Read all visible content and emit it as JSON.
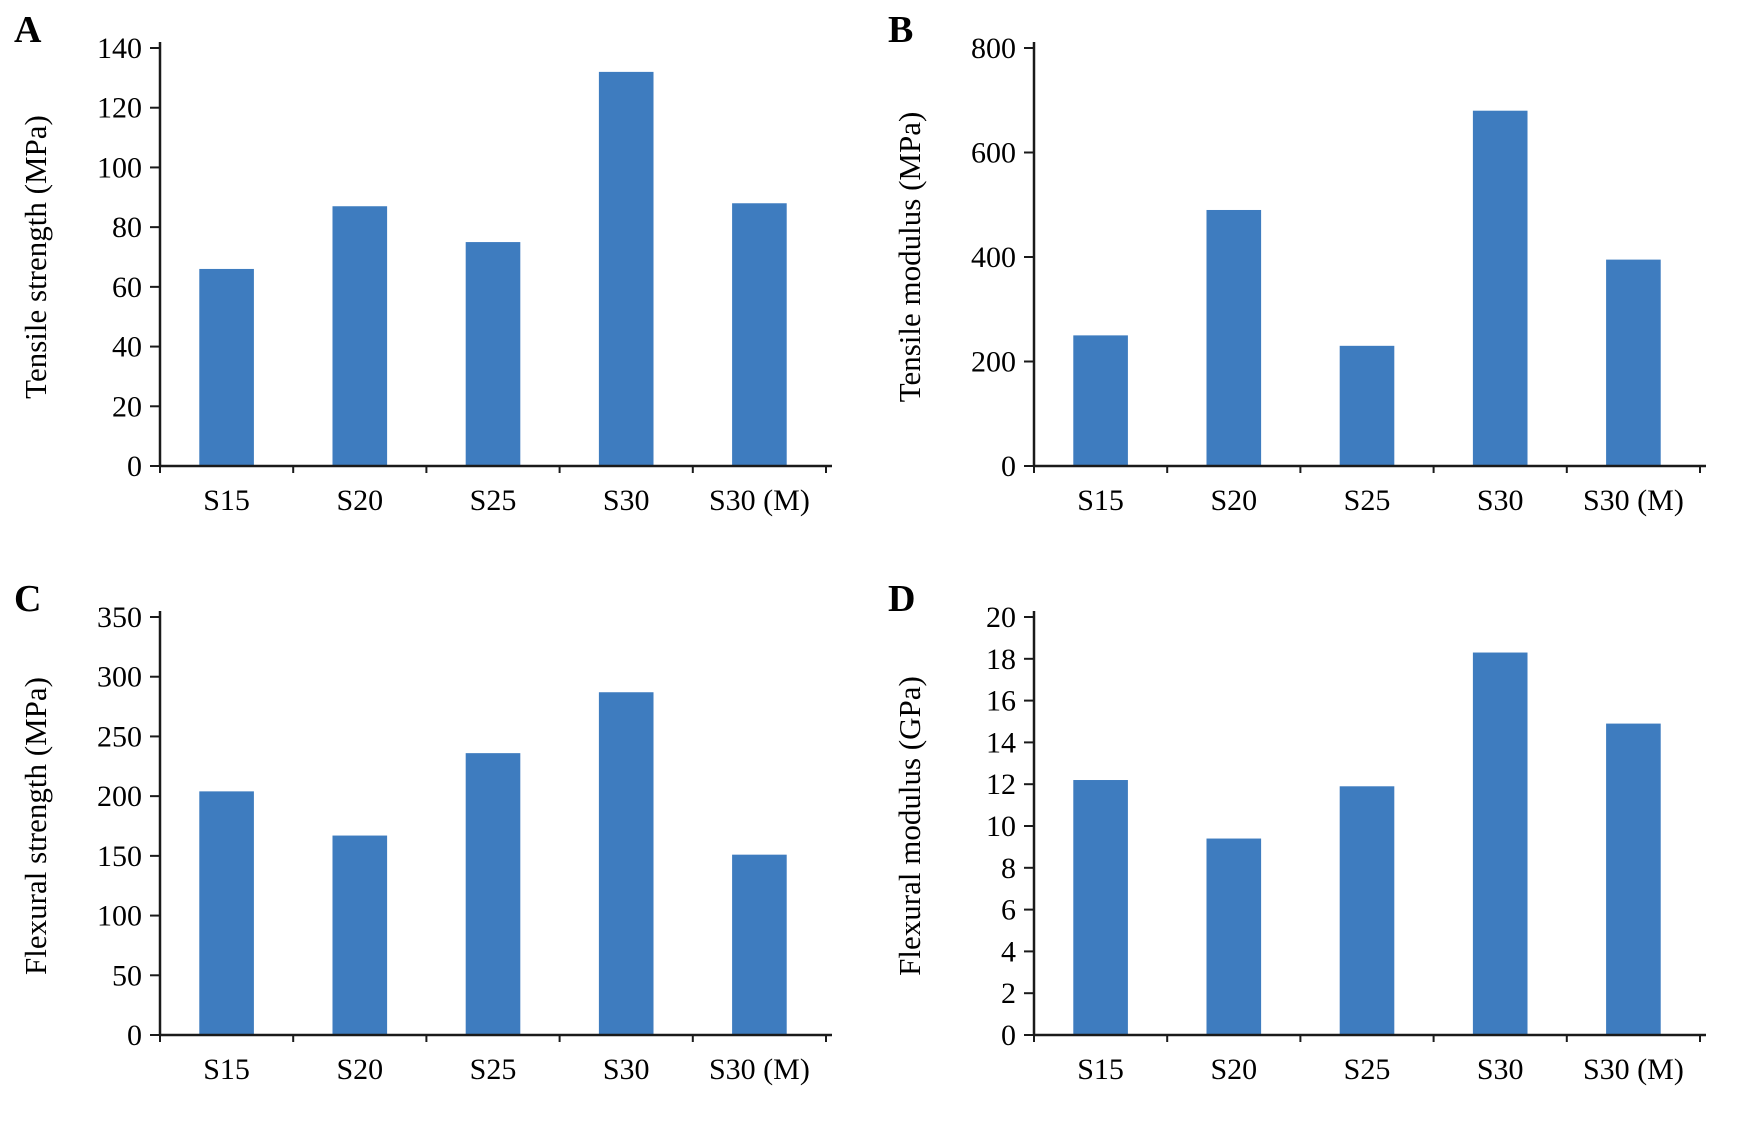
{
  "page": {
    "background": "#ffffff"
  },
  "style": {
    "bar_color": "#3E7CBF",
    "axis_color": "#1a1a1a",
    "text_color": "#000000"
  },
  "chart_data": [
    {
      "type": "bar",
      "panel_label": "A",
      "title": "",
      "xlabel": "",
      "ylabel": "Tensile strength (MPa)",
      "ylim": [
        0,
        140
      ],
      "ytick_step": 20,
      "grid": false,
      "legend": "none",
      "categories": [
        "S15",
        "S20",
        "S25",
        "S30",
        "S30 (M)"
      ],
      "values": [
        66,
        87,
        75,
        132,
        88
      ]
    },
    {
      "type": "bar",
      "panel_label": "B",
      "title": "",
      "xlabel": "",
      "ylabel": "Tensile modulus (MPa)",
      "ylim": [
        0,
        800
      ],
      "ytick_step": 200,
      "grid": false,
      "legend": "none",
      "categories": [
        "S15",
        "S20",
        "S25",
        "S30",
        "S30 (M)"
      ],
      "values": [
        250,
        490,
        230,
        680,
        395
      ]
    },
    {
      "type": "bar",
      "panel_label": "C",
      "title": "",
      "xlabel": "",
      "ylabel": "Flexural strength (MPa)",
      "ylim": [
        0,
        350
      ],
      "ytick_step": 50,
      "grid": false,
      "legend": "none",
      "categories": [
        "S15",
        "S20",
        "S25",
        "S30",
        "S30 (M)"
      ],
      "values": [
        204,
        167,
        236,
        287,
        151
      ]
    },
    {
      "type": "bar",
      "panel_label": "D",
      "title": "",
      "xlabel": "",
      "ylabel": "Flexural modulus (GPa)",
      "ylim": [
        0,
        20
      ],
      "ytick_step": 2,
      "grid": false,
      "legend": "none",
      "categories": [
        "S15",
        "S20",
        "S25",
        "S30",
        "S30 (M)"
      ],
      "values": [
        12.2,
        9.4,
        11.9,
        18.3,
        14.9
      ]
    }
  ]
}
